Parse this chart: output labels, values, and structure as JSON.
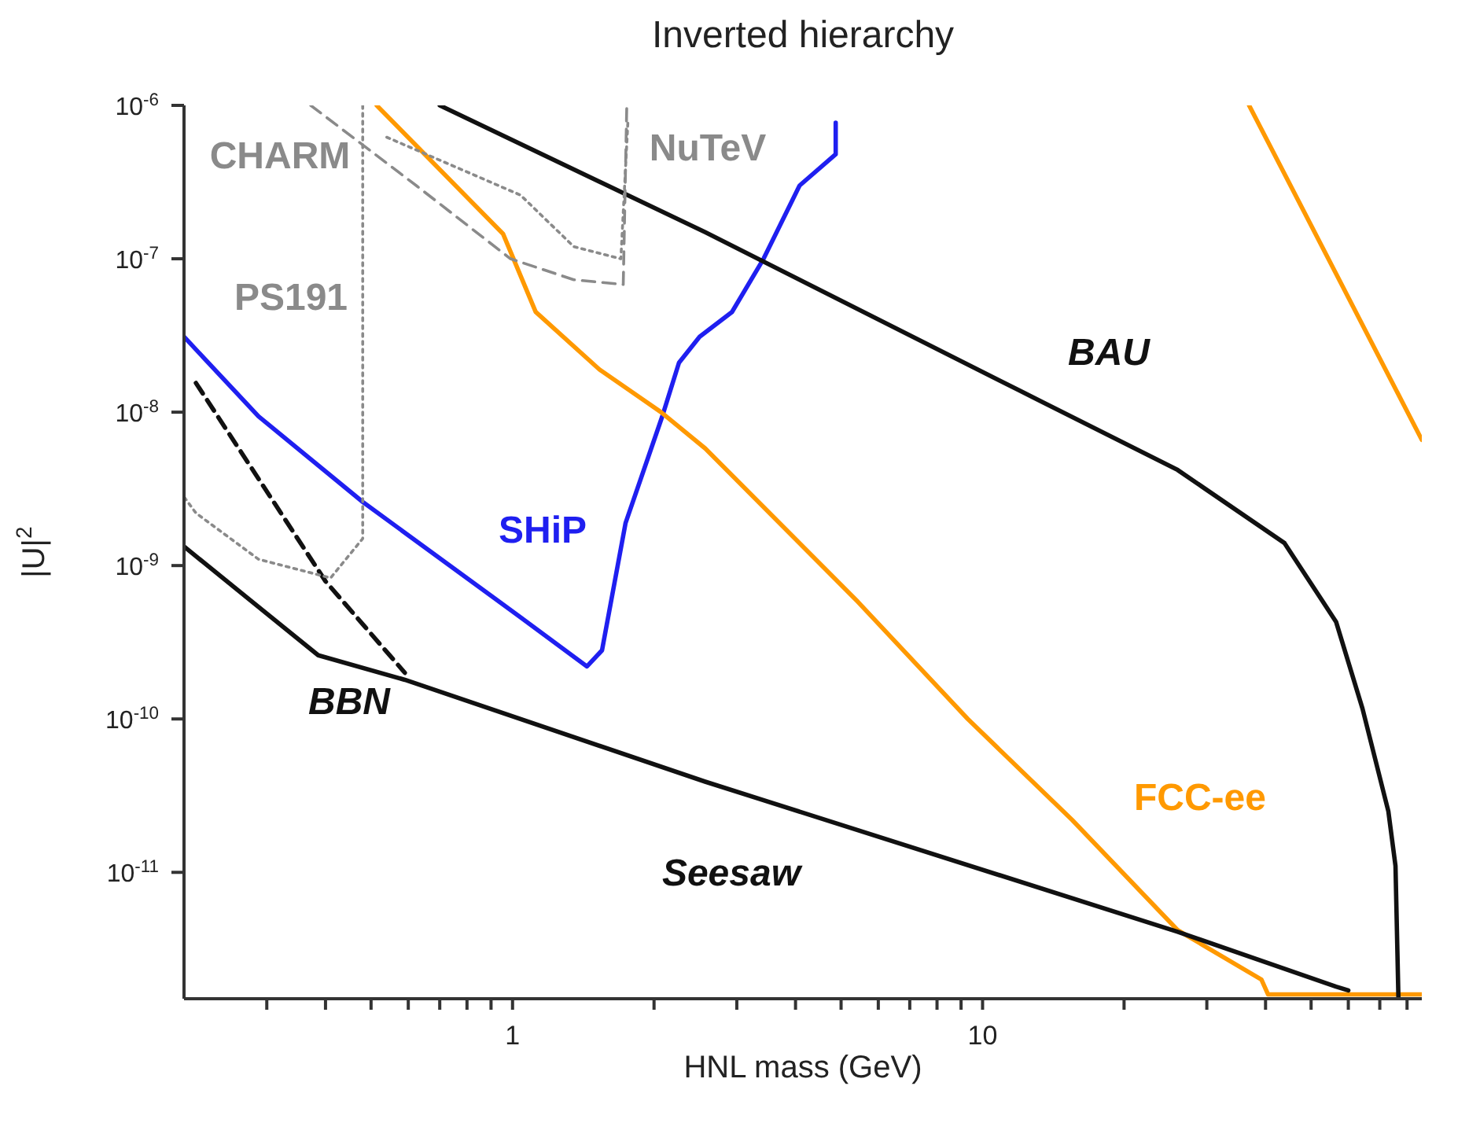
{
  "chart_data": {
    "type": "line",
    "title": "Inverted hierarchy",
    "xlabel": "HNL mass (GeV)",
    "ylabel": "|U|$^{2}$",
    "log": "xy",
    "xlim": [
      0.2,
      86
    ],
    "ylim": [
      1.5e-12,
      1e-06
    ],
    "xticks": [
      {
        "value": 0.3,
        "label": null
      },
      {
        "value": 0.4,
        "label": null
      },
      {
        "value": 0.5,
        "label": null
      },
      {
        "value": 0.6,
        "label": null
      },
      {
        "value": 0.7,
        "label": null
      },
      {
        "value": 0.8,
        "label": null
      },
      {
        "value": 0.9,
        "label": null
      },
      1,
      {
        "value": 2,
        "label": null
      },
      {
        "value": 3,
        "label": null
      },
      {
        "value": 4,
        "label": null
      },
      {
        "value": 5,
        "label": null
      },
      {
        "value": 6,
        "label": null
      },
      {
        "value": 7,
        "label": null
      },
      {
        "value": 8,
        "label": null
      },
      {
        "value": 9,
        "label": null
      },
      10,
      {
        "value": 20,
        "label": null
      },
      {
        "value": 30,
        "label": null
      },
      {
        "value": 40,
        "label": null
      },
      {
        "value": 50,
        "label": null
      },
      {
        "value": 60,
        "label": null
      },
      {
        "value": 70,
        "label": null
      },
      {
        "value": 80,
        "label": null
      }
    ],
    "yticks": [
      {
        "value": 1e-11,
        "label": "10$^{-11}$"
      },
      {
        "value": 1e-10,
        "label": "10$^{-10}$"
      },
      {
        "value": 1e-09,
        "label": "10$^{-9}$"
      },
      {
        "value": 1e-08,
        "label": "10$^{-8}$"
      },
      {
        "value": 1e-07,
        "label": "10$^{-7}$"
      },
      {
        "value": 1e-06,
        "label": "10$^{-6}$"
      }
    ],
    "series": [
      {
        "name": "SHiP",
        "color": "#1f1ff0",
        "x": [
          0.2,
          0.288,
          0.48,
          1.04,
          1.44,
          1.55,
          1.74,
          2.08,
          2.26,
          2.5,
          2.93,
          3.42,
          4.08,
          4.87,
          4.87
        ],
        "values": [
          3.1e-08,
          9.4e-09,
          2.6e-09,
          4.6e-10,
          2.2e-10,
          2.8e-10,
          1.9e-09,
          9.3e-09,
          2.1e-08,
          3.1e-08,
          4.5e-08,
          1e-07,
          3e-07,
          4.8e-07,
          7.7e-07
        ]
      },
      {
        "name": "FCC-ee",
        "color": "#ff9900",
        "x": [
          0.514,
          0.955,
          1.12,
          1.53,
          2.07,
          2.57,
          5.43,
          9.3,
          15.5,
          26,
          39.2,
          40.5,
          86
        ],
        "values": [
          1e-06,
          1.45e-07,
          4.5e-08,
          1.9e-08,
          1e-08,
          5.8e-09,
          5.8e-10,
          1e-10,
          2.2e-11,
          4.2e-12,
          2e-12,
          1.6e-12,
          1.6e-12
        ]
      },
      {
        "color": "#ff9900",
        "x": [
          36.9,
          56.5,
          86
        ],
        "values": [
          1e-06,
          8e-08,
          6.6e-09
        ]
      },
      {
        "name": "BAU",
        "color": "#111111",
        "x": [
          0.7,
          2.57,
          12,
          26,
          43.9,
          56.5,
          64.3,
          73,
          75.6,
          76.7
        ],
        "values": [
          1e-06,
          1.49e-07,
          1.38e-08,
          4.2e-09,
          1.4e-09,
          4.3e-10,
          1.17e-10,
          2.5e-11,
          1.1e-11,
          1.5e-12
        ]
      },
      {
        "name": "Seesaw",
        "color": "#111111",
        "x": [
          0.2,
          0.386,
          0.59,
          2.57,
          26,
          56.5,
          60
        ],
        "values": [
          1.33e-09,
          2.6e-10,
          1.8e-10,
          3.9e-11,
          4.1e-12,
          1.8e-12,
          1.7e-12
        ]
      },
      {
        "name": "BBN",
        "color": "#111111",
        "line_style": "dashed",
        "x": [
          0.212,
          0.4,
          0.59
        ],
        "values": [
          1.55e-08,
          7.9e-10,
          2e-10
        ]
      },
      {
        "name": "PS191",
        "color": "#8a8a8a",
        "line_style": "dotted",
        "x": [
          0.48,
          0.48,
          0.41,
          0.288,
          0.212,
          0.2
        ],
        "values": [
          1e-06,
          1.5e-09,
          8.3e-10,
          1.1e-09,
          2.2e-09,
          2.8e-09
        ]
      },
      {
        "name": "CHARM",
        "color": "#8a8a8a",
        "line_style": "dashed",
        "x": [
          0.372,
          0.624,
          0.99,
          1.35,
          1.72,
          1.75
        ],
        "values": [
          1e-06,
          3e-07,
          1e-07,
          7.3e-08,
          6.8e-08,
          1e-06
        ]
      },
      {
        "name": "NuTeV",
        "color": "#8a8a8a",
        "line_style": "dotted",
        "x": [
          0.54,
          1.04,
          1.35,
          1.7,
          1.76
        ],
        "values": [
          6.2e-07,
          2.6e-07,
          1.2e-07,
          1e-07,
          7.9e-07
        ]
      }
    ]
  }
}
